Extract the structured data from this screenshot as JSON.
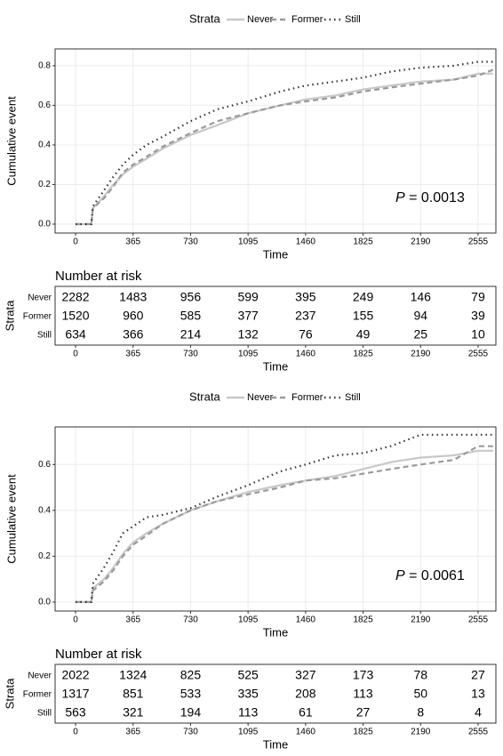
{
  "chart_data": [
    {
      "type": "line",
      "legend_title": "Strata",
      "xlabel": "Time",
      "ylabel": "Cumulative event",
      "grid": true,
      "x": [
        0,
        100,
        110,
        180,
        240,
        300,
        365,
        450,
        550,
        730,
        900,
        1095,
        1300,
        1460,
        1650,
        1825,
        2000,
        2190,
        2400,
        2555,
        2650
      ],
      "series": [
        {
          "name": "Never",
          "color": "#c8c8c8",
          "linestyle": "solid",
          "values": [
            0,
            0,
            0.08,
            0.14,
            0.2,
            0.25,
            0.29,
            0.33,
            0.38,
            0.45,
            0.5,
            0.56,
            0.6,
            0.63,
            0.65,
            0.68,
            0.7,
            0.72,
            0.73,
            0.76,
            0.76
          ]
        },
        {
          "name": "Former",
          "color": "#9a9a9a",
          "linestyle": "dashed",
          "values": [
            0,
            0,
            0.08,
            0.13,
            0.19,
            0.26,
            0.3,
            0.34,
            0.39,
            0.46,
            0.52,
            0.56,
            0.6,
            0.62,
            0.64,
            0.67,
            0.69,
            0.71,
            0.73,
            0.75,
            0.78
          ]
        },
        {
          "name": "Still",
          "color": "#333333",
          "linestyle": "dotted",
          "values": [
            0,
            0,
            0.09,
            0.17,
            0.24,
            0.3,
            0.35,
            0.4,
            0.44,
            0.52,
            0.58,
            0.62,
            0.67,
            0.7,
            0.72,
            0.74,
            0.77,
            0.79,
            0.8,
            0.82,
            0.82
          ]
        }
      ],
      "xlim": [
        -130,
        2668
      ],
      "ylim": [
        -0.045,
        0.885
      ],
      "xticks": [
        0,
        365,
        730,
        1095,
        1460,
        1825,
        2190,
        2555
      ],
      "yticks": [
        {
          "value": 0,
          "label": "0.0"
        },
        0.2,
        0.4,
        0.6,
        0.8
      ],
      "annotation": {
        "symbol": "P",
        "text": " = 0.0013"
      },
      "risk_table": {
        "title": "Number at risk",
        "ylabel": "Strata",
        "rows": [
          [
            2282,
            1483,
            956,
            599,
            395,
            249,
            146,
            79
          ],
          [
            1520,
            960,
            585,
            377,
            237,
            155,
            94,
            39
          ],
          [
            634,
            366,
            214,
            132,
            76,
            49,
            25,
            10
          ]
        ]
      }
    },
    {
      "type": "line",
      "legend_title": "Strata",
      "xlabel": "Time",
      "ylabel": "Cumulative event",
      "grid": true,
      "x": [
        0,
        100,
        110,
        180,
        240,
        300,
        365,
        450,
        550,
        730,
        900,
        1095,
        1300,
        1460,
        1650,
        1825,
        2000,
        2190,
        2400,
        2555,
        2650
      ],
      "series": [
        {
          "name": "Never",
          "color": "#c8c8c8",
          "linestyle": "solid",
          "values": [
            0,
            0,
            0.06,
            0.1,
            0.15,
            0.21,
            0.26,
            0.3,
            0.34,
            0.4,
            0.44,
            0.48,
            0.51,
            0.53,
            0.55,
            0.58,
            0.61,
            0.63,
            0.64,
            0.66,
            0.66
          ]
        },
        {
          "name": "Former",
          "color": "#9a9a9a",
          "linestyle": "dashed",
          "values": [
            0,
            0,
            0.05,
            0.09,
            0.14,
            0.2,
            0.25,
            0.29,
            0.34,
            0.4,
            0.44,
            0.47,
            0.5,
            0.53,
            0.54,
            0.56,
            0.58,
            0.6,
            0.62,
            0.68,
            0.68
          ]
        },
        {
          "name": "Still",
          "color": "#333333",
          "linestyle": "dotted",
          "values": [
            0,
            0,
            0.08,
            0.15,
            0.22,
            0.3,
            0.33,
            0.37,
            0.38,
            0.41,
            0.46,
            0.51,
            0.57,
            0.6,
            0.64,
            0.65,
            0.68,
            0.73,
            0.73,
            0.73,
            0.73
          ]
        }
      ],
      "xlim": [
        -130,
        2668
      ],
      "ylim": [
        -0.039,
        0.764
      ],
      "xticks": [
        0,
        365,
        730,
        1095,
        1460,
        1825,
        2190,
        2555
      ],
      "yticks": [
        {
          "value": 0,
          "label": "0.0"
        },
        0.2,
        0.4,
        0.6
      ],
      "annotation": {
        "symbol": "P",
        "text": " = 0.0061"
      },
      "risk_table": {
        "title": "Number at risk",
        "ylabel": "Strata",
        "rows": [
          [
            2022,
            1324,
            825,
            525,
            327,
            173,
            78,
            27
          ],
          [
            1317,
            851,
            533,
            335,
            208,
            113,
            50,
            13
          ],
          [
            563,
            321,
            194,
            113,
            61,
            27,
            8,
            4
          ]
        ]
      }
    }
  ]
}
